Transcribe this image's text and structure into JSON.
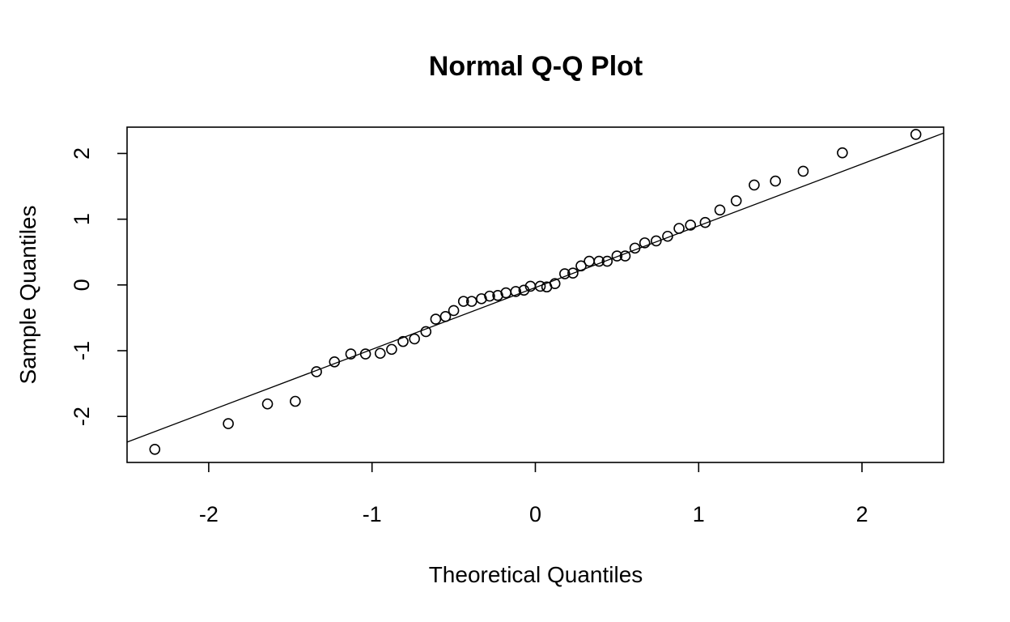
{
  "chart_data": {
    "type": "scatter",
    "title": "Normal Q-Q Plot",
    "xlabel": "Theoretical Quantiles",
    "ylabel": "Sample Quantiles",
    "xlim": [
      -2.5,
      2.5
    ],
    "ylim": [
      -2.7,
      2.4
    ],
    "xticks": [
      -2,
      -1,
      0,
      1,
      2
    ],
    "yticks": [
      -2,
      -1,
      0,
      1,
      2
    ],
    "xtick_labels": [
      "-2",
      "-1",
      "0",
      "1",
      "2"
    ],
    "ytick_labels": [
      "-2",
      "-1",
      "0",
      "1",
      "2"
    ],
    "grid": false,
    "reference_line": {
      "intercept": -0.04,
      "slope": 0.94
    },
    "points": [
      [
        -2.33,
        -2.5
      ],
      [
        -1.88,
        -2.11
      ],
      [
        -1.64,
        -1.81
      ],
      [
        -1.47,
        -1.77
      ],
      [
        -1.34,
        -1.32
      ],
      [
        -1.23,
        -1.17
      ],
      [
        -1.13,
        -1.05
      ],
      [
        -1.04,
        -1.05
      ],
      [
        -0.95,
        -1.04
      ],
      [
        -0.88,
        -0.98
      ],
      [
        -0.81,
        -0.86
      ],
      [
        -0.74,
        -0.82
      ],
      [
        -0.67,
        -0.71
      ],
      [
        -0.61,
        -0.52
      ],
      [
        -0.55,
        -0.48
      ],
      [
        -0.5,
        -0.39
      ],
      [
        -0.44,
        -0.25
      ],
      [
        -0.39,
        -0.25
      ],
      [
        -0.33,
        -0.21
      ],
      [
        -0.28,
        -0.17
      ],
      [
        -0.23,
        -0.16
      ],
      [
        -0.18,
        -0.12
      ],
      [
        -0.12,
        -0.1
      ],
      [
        -0.07,
        -0.08
      ],
      [
        -0.03,
        -0.02
      ],
      [
        0.03,
        -0.02
      ],
      [
        0.07,
        -0.03
      ],
      [
        0.12,
        0.02
      ],
      [
        0.18,
        0.17
      ],
      [
        0.23,
        0.18
      ],
      [
        0.28,
        0.29
      ],
      [
        0.33,
        0.36
      ],
      [
        0.39,
        0.36
      ],
      [
        0.44,
        0.36
      ],
      [
        0.5,
        0.44
      ],
      [
        0.55,
        0.44
      ],
      [
        0.61,
        0.56
      ],
      [
        0.67,
        0.64
      ],
      [
        0.74,
        0.67
      ],
      [
        0.81,
        0.74
      ],
      [
        0.88,
        0.86
      ],
      [
        0.95,
        0.91
      ],
      [
        1.04,
        0.95
      ],
      [
        1.13,
        1.14
      ],
      [
        1.23,
        1.28
      ],
      [
        1.34,
        1.52
      ],
      [
        1.47,
        1.58
      ],
      [
        1.64,
        1.73
      ],
      [
        1.88,
        2.01
      ],
      [
        2.33,
        2.29
      ]
    ]
  }
}
